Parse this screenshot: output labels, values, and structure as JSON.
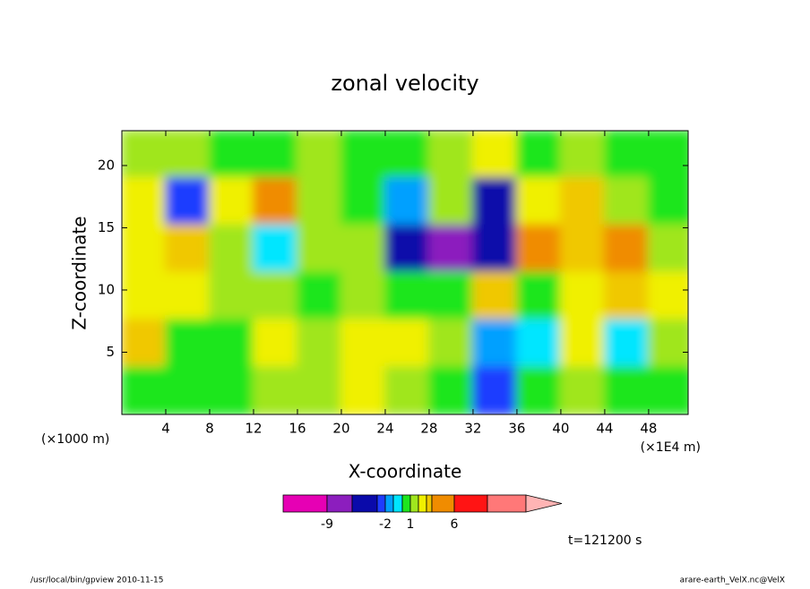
{
  "chart_data": {
    "type": "contour",
    "title": "zonal velocity",
    "x_label": "X-coordinate",
    "y_label": "Z-coordinate",
    "y_unit_label": "(×1000 m)",
    "x_unit_label": "(×1E4 m)",
    "xlim": [
      0,
      51.6
    ],
    "ylim": [
      0,
      22.8
    ],
    "xticks": [
      4,
      8,
      12,
      16,
      20,
      24,
      28,
      32,
      36,
      40,
      44,
      48
    ],
    "yticks": [
      5,
      10,
      15,
      20
    ],
    "x": [
      2,
      6,
      10,
      14,
      18,
      22,
      26,
      30,
      34,
      38,
      42,
      46,
      50
    ],
    "y": [
      20.9,
      17.1,
      13.3,
      9.5,
      5.7,
      1.9
    ],
    "z": [
      [
        1,
        1,
        0.5,
        0.5,
        1.5,
        0.5,
        0.5,
        1.5,
        2,
        0.5,
        1.5,
        0.5,
        0.5
      ],
      [
        2,
        -2.5,
        2,
        4,
        1.5,
        0.5,
        -1.5,
        1.5,
        -4,
        2,
        3,
        1,
        0.5
      ],
      [
        2,
        3.5,
        1.5,
        -0.5,
        1,
        1.5,
        -4,
        -7,
        -4,
        5,
        3,
        4,
        1.5
      ],
      [
        2.5,
        2.5,
        1,
        1.5,
        0.5,
        1.5,
        0.5,
        0.5,
        3,
        0.5,
        2.5,
        3,
        2
      ],
      [
        3,
        0.5,
        0.5,
        2,
        1.5,
        2.5,
        2.5,
        1.5,
        -2,
        -1,
        2,
        -0.5,
        1.5
      ],
      [
        0.5,
        0.5,
        0.5,
        1.5,
        1.5,
        2.5,
        1.5,
        0.5,
        -3,
        0.5,
        1.5,
        0.5,
        0.5
      ]
    ],
    "colorbar": {
      "levels": [
        -9,
        -6,
        -3,
        -2,
        -1,
        0,
        1,
        2,
        3,
        4,
        6,
        9,
        12
      ],
      "colors": [
        "#e600b4",
        "#8c1ebe",
        "#0a0aaa",
        "#1e3cff",
        "#00a0ff",
        "#00e6ff",
        "#1ee61e",
        "#a0e61e",
        "#f0f000",
        "#f0c800",
        "#f08c00",
        "#ff1414",
        "#ff7878",
        "#ffb4b4"
      ],
      "ticks": [
        -9,
        -2,
        1,
        6
      ]
    },
    "annotation": "t=121200 s"
  },
  "footer": {
    "left": "/usr/local/bin/gpview  2010-11-15",
    "right": "arare-earth_VelX.nc@VelX"
  }
}
